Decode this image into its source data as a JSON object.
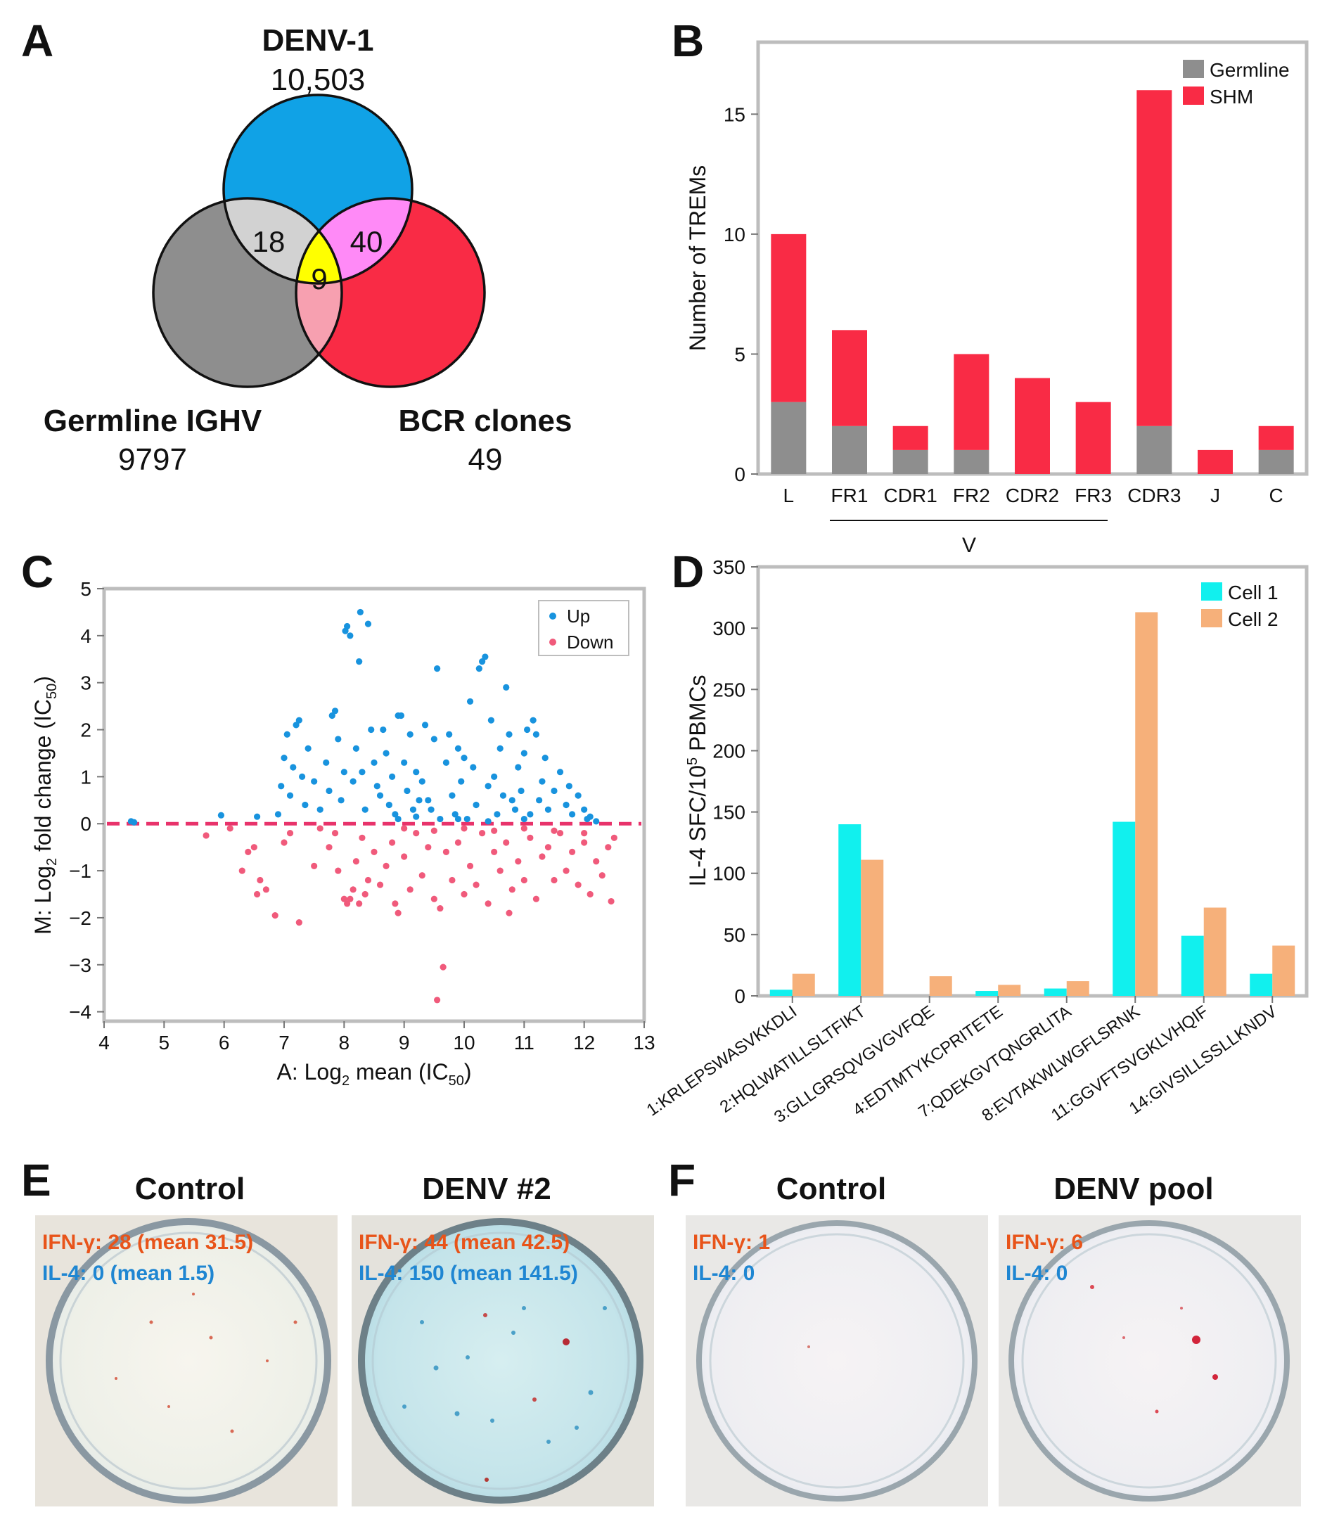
{
  "colors": {
    "blue": "#10a2e6",
    "red": "#f92b45",
    "gray": "#8e8e8e",
    "light_gray": "#d2d2d2",
    "pink_light": "#f7a0b0",
    "magenta": "#ff8af7",
    "yellow": "#ffff00",
    "cyan": "#11f0ee",
    "orange": "#f6b07a",
    "up_blue": "#1893de",
    "down_pink": "#f05a7b",
    "frame_gray": "#bdbdbd",
    "ifn_text": "#e8541a",
    "il4_text": "#1f86d2"
  },
  "panels": {
    "A": {
      "letter": "A",
      "denv_title": "DENV-1",
      "denv_count": "10,503",
      "germ_title": "Germline IGHV",
      "germ_count": "9797",
      "bcr_title": "BCR clones",
      "bcr_count": "49",
      "n_germ_denv": "18",
      "n_denv_bcr": "40",
      "n_all": "9"
    },
    "B": {
      "letter": "B",
      "group_label": "V"
    },
    "C": {
      "letter": "C"
    },
    "D": {
      "letter": "D"
    },
    "E": {
      "letter": "E",
      "dishes": [
        {
          "title": "Control",
          "ifn": "IFN-γ: 28 (mean 31.5)",
          "il4": "IL-4: 0 (mean 1.5)"
        },
        {
          "title": "DENV #2",
          "ifn": "IFN-γ: 44 (mean 42.5)",
          "il4": "IL-4: 150 (mean 141.5)"
        }
      ]
    },
    "F": {
      "letter": "F",
      "dishes": [
        {
          "title": "Control",
          "ifn": "IFN-γ: 1",
          "il4": "IL-4: 0"
        },
        {
          "title": "DENV pool",
          "ifn": "IFN-γ: 6",
          "il4": "IL-4: 0"
        }
      ]
    }
  },
  "chart_data": [
    {
      "panel": "B",
      "type": "bar",
      "stacked": true,
      "categories": [
        "L",
        "FR1",
        "CDR1",
        "FR2",
        "CDR2",
        "FR3",
        "CDR3",
        "J",
        "C"
      ],
      "series": [
        {
          "name": "Germline",
          "values": [
            3,
            2,
            1,
            1,
            0,
            0,
            2,
            0,
            1
          ]
        },
        {
          "name": "SHM",
          "values": [
            7,
            4,
            1,
            4,
            4,
            3,
            14,
            1,
            1
          ]
        }
      ],
      "ylabel": "Number of TREMs",
      "ylim": [
        0,
        18
      ],
      "yticks": [
        0,
        5,
        10,
        15
      ],
      "group_label": "V",
      "legend_position": "top-right"
    },
    {
      "panel": "C",
      "type": "scatter",
      "xlabel_main": "A: Log",
      "xlabel_sub": "2",
      "xlabel_rest": " mean (IC",
      "xlabel_sub2": "50",
      "xlabel_end": ")",
      "ylabel_main": "M: Log",
      "ylabel_sub": "2",
      "ylabel_rest": " fold change (IC",
      "ylabel_sub2": "50",
      "ylabel_end": ")",
      "xlim": [
        4,
        13
      ],
      "ylim": [
        -4.2,
        5
      ],
      "xticks": [
        4,
        5,
        6,
        7,
        8,
        9,
        10,
        11,
        12,
        13
      ],
      "yticks": [
        -4,
        -3,
        -2,
        -1,
        0,
        1,
        2,
        3,
        4,
        5
      ],
      "zero_line": true,
      "legend": [
        "Up",
        "Down"
      ],
      "legend_position": "top-right",
      "series": [
        {
          "name": "Up",
          "points": [
            [
              4.45,
              0.05
            ],
            [
              4.5,
              0.03
            ],
            [
              5.95,
              0.18
            ],
            [
              6.55,
              0.15
            ],
            [
              6.9,
              0.2
            ],
            [
              6.95,
              0.8
            ],
            [
              7.0,
              1.4
            ],
            [
              7.05,
              1.9
            ],
            [
              7.1,
              0.6
            ],
            [
              7.15,
              1.2
            ],
            [
              7.2,
              2.1
            ],
            [
              7.25,
              2.2
            ],
            [
              7.3,
              1.0
            ],
            [
              7.35,
              0.4
            ],
            [
              7.4,
              1.6
            ],
            [
              7.5,
              0.9
            ],
            [
              7.6,
              0.3
            ],
            [
              7.7,
              1.3
            ],
            [
              7.75,
              0.7
            ],
            [
              7.8,
              2.3
            ],
            [
              7.85,
              2.4
            ],
            [
              7.9,
              1.8
            ],
            [
              7.95,
              0.5
            ],
            [
              8.0,
              1.1
            ],
            [
              8.02,
              4.1
            ],
            [
              8.05,
              4.2
            ],
            [
              8.1,
              4.0
            ],
            [
              8.15,
              0.9
            ],
            [
              8.2,
              1.6
            ],
            [
              8.25,
              3.45
            ],
            [
              8.27,
              4.5
            ],
            [
              8.3,
              1.1
            ],
            [
              8.35,
              0.3
            ],
            [
              8.4,
              4.25
            ],
            [
              8.45,
              2.0
            ],
            [
              8.5,
              1.3
            ],
            [
              8.55,
              0.8
            ],
            [
              8.6,
              0.6
            ],
            [
              8.65,
              2.0
            ],
            [
              8.7,
              1.5
            ],
            [
              8.75,
              0.4
            ],
            [
              8.8,
              1.0
            ],
            [
              8.85,
              0.2
            ],
            [
              8.9,
              2.3
            ],
            [
              8.95,
              2.3
            ],
            [
              9.0,
              1.3
            ],
            [
              9.05,
              0.7
            ],
            [
              9.1,
              1.9
            ],
            [
              9.15,
              0.3
            ],
            [
              9.2,
              1.1
            ],
            [
              9.25,
              0.5
            ],
            [
              9.3,
              0.9
            ],
            [
              9.35,
              2.1
            ],
            [
              9.4,
              0.5
            ],
            [
              9.45,
              0.3
            ],
            [
              9.5,
              1.8
            ],
            [
              9.55,
              3.3
            ],
            [
              9.6,
              0.1
            ],
            [
              9.7,
              1.3
            ],
            [
              9.75,
              1.9
            ],
            [
              9.8,
              0.6
            ],
            [
              9.85,
              0.2
            ],
            [
              9.9,
              1.6
            ],
            [
              9.95,
              0.9
            ],
            [
              10.0,
              1.4
            ],
            [
              10.05,
              0.1
            ],
            [
              10.1,
              2.6
            ],
            [
              10.15,
              1.2
            ],
            [
              10.2,
              0.4
            ],
            [
              10.25,
              3.3
            ],
            [
              10.3,
              3.45
            ],
            [
              10.35,
              3.55
            ],
            [
              10.4,
              0.8
            ],
            [
              10.45,
              2.2
            ],
            [
              10.5,
              1.0
            ],
            [
              10.55,
              0.2
            ],
            [
              10.6,
              1.6
            ],
            [
              10.65,
              0.6
            ],
            [
              10.7,
              2.9
            ],
            [
              10.75,
              1.9
            ],
            [
              10.8,
              0.5
            ],
            [
              10.85,
              0.3
            ],
            [
              10.9,
              1.2
            ],
            [
              10.95,
              0.7
            ],
            [
              11.0,
              1.5
            ],
            [
              11.05,
              2.0
            ],
            [
              11.1,
              0.2
            ],
            [
              11.15,
              2.2
            ],
            [
              11.2,
              1.9
            ],
            [
              11.25,
              0.5
            ],
            [
              11.3,
              0.9
            ],
            [
              11.35,
              1.4
            ],
            [
              11.4,
              0.3
            ],
            [
              11.5,
              0.7
            ],
            [
              11.6,
              1.1
            ],
            [
              11.7,
              0.4
            ],
            [
              11.75,
              0.8
            ],
            [
              11.8,
              0.2
            ],
            [
              11.9,
              0.6
            ],
            [
              12.0,
              0.3
            ],
            [
              12.05,
              0.1
            ],
            [
              12.1,
              0.15
            ],
            [
              12.2,
              0.05
            ],
            [
              8.9,
              0.1
            ],
            [
              9.2,
              0.15
            ],
            [
              9.9,
              0.1
            ],
            [
              10.4,
              0.05
            ],
            [
              11.0,
              0.1
            ]
          ]
        },
        {
          "name": "Down",
          "points": [
            [
              5.7,
              -0.25
            ],
            [
              6.1,
              -0.1
            ],
            [
              6.3,
              -1.0
            ],
            [
              6.4,
              -0.6
            ],
            [
              6.5,
              -0.5
            ],
            [
              6.55,
              -1.5
            ],
            [
              6.6,
              -1.2
            ],
            [
              6.7,
              -1.4
            ],
            [
              6.85,
              -1.95
            ],
            [
              7.0,
              -0.4
            ],
            [
              7.1,
              -0.2
            ],
            [
              7.25,
              -2.1
            ],
            [
              7.5,
              -0.9
            ],
            [
              7.6,
              -0.1
            ],
            [
              7.75,
              -0.5
            ],
            [
              7.85,
              -0.2
            ],
            [
              7.9,
              -1.0
            ],
            [
              8.0,
              -1.6
            ],
            [
              8.05,
              -1.7
            ],
            [
              8.1,
              -1.6
            ],
            [
              8.15,
              -1.4
            ],
            [
              8.2,
              -0.8
            ],
            [
              8.25,
              -1.7
            ],
            [
              8.3,
              -0.3
            ],
            [
              8.35,
              -1.5
            ],
            [
              8.4,
              -1.2
            ],
            [
              8.5,
              -0.6
            ],
            [
              8.6,
              -1.3
            ],
            [
              8.7,
              -0.9
            ],
            [
              8.8,
              -0.4
            ],
            [
              8.85,
              -1.7
            ],
            [
              8.9,
              -1.9
            ],
            [
              9.0,
              -0.7
            ],
            [
              9.1,
              -1.4
            ],
            [
              9.2,
              -0.2
            ],
            [
              9.3,
              -1.1
            ],
            [
              9.4,
              -0.5
            ],
            [
              9.5,
              -1.6
            ],
            [
              9.55,
              -3.75
            ],
            [
              9.6,
              -1.8
            ],
            [
              9.65,
              -3.05
            ],
            [
              9.7,
              -0.6
            ],
            [
              9.8,
              -1.2
            ],
            [
              9.9,
              -0.4
            ],
            [
              10.0,
              -1.5
            ],
            [
              10.1,
              -0.9
            ],
            [
              10.2,
              -1.3
            ],
            [
              10.3,
              -0.2
            ],
            [
              10.4,
              -1.7
            ],
            [
              10.5,
              -0.6
            ],
            [
              10.6,
              -1.0
            ],
            [
              10.7,
              -0.4
            ],
            [
              10.75,
              -1.9
            ],
            [
              10.8,
              -1.4
            ],
            [
              10.9,
              -0.8
            ],
            [
              11.0,
              -1.2
            ],
            [
              11.1,
              -0.3
            ],
            [
              11.2,
              -1.6
            ],
            [
              11.3,
              -0.7
            ],
            [
              11.4,
              -0.5
            ],
            [
              11.5,
              -1.2
            ],
            [
              11.6,
              -0.2
            ],
            [
              11.7,
              -1.0
            ],
            [
              11.8,
              -0.6
            ],
            [
              11.9,
              -1.3
            ],
            [
              12.0,
              -0.4
            ],
            [
              12.1,
              -1.5
            ],
            [
              12.2,
              -0.8
            ],
            [
              12.3,
              -1.1
            ],
            [
              12.4,
              -0.5
            ],
            [
              12.45,
              -1.65
            ],
            [
              12.5,
              -0.3
            ],
            [
              9.0,
              -0.1
            ],
            [
              9.5,
              -0.15
            ],
            [
              10.0,
              -0.1
            ],
            [
              10.5,
              -0.15
            ],
            [
              11.0,
              -0.1
            ],
            [
              11.5,
              -0.15
            ],
            [
              12.0,
              -0.2
            ]
          ]
        }
      ]
    },
    {
      "panel": "D",
      "type": "bar",
      "categories": [
        "1:KRLEPSWASVKKDLI",
        "2:HQLWATILLSLTFIKT",
        "3:GLLGRSQVGVGVFQE",
        "4:EDTMTYKCPRITETE",
        "7:QDEKGVTQNGRLITA",
        "8:EVTAKWLWGFLSRNK",
        "11:GGVFTSVGKLVHQIF",
        "14:GIVSILLSSLLKNDV"
      ],
      "series": [
        {
          "name": "Cell 1",
          "values": [
            5,
            140,
            0,
            4,
            6,
            142,
            49,
            18
          ]
        },
        {
          "name": "Cell 2",
          "values": [
            18,
            111,
            16,
            9,
            12,
            313,
            72,
            41
          ]
        }
      ],
      "ylabel_main": "IL-4 SFC/10",
      "ylabel_sup": "5",
      "ylabel_rest": " PBMCs",
      "ylim": [
        0,
        350
      ],
      "yticks": [
        0,
        50,
        100,
        150,
        200,
        250,
        300,
        350
      ],
      "legend_position": "top-right"
    }
  ]
}
